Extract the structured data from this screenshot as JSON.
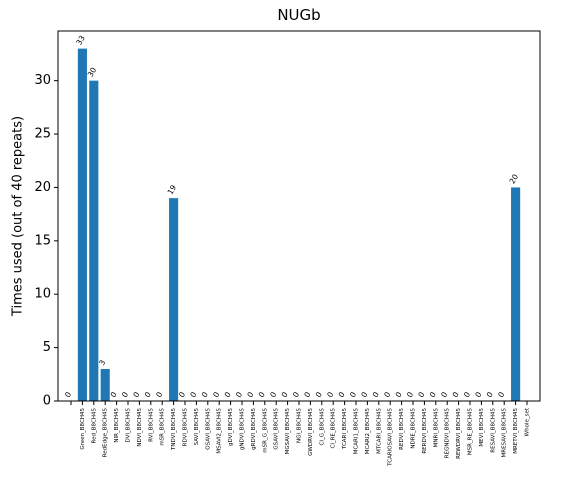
{
  "chart_data": {
    "type": "bar",
    "title": "NUGb",
    "ylabel": "Times used (out of 40 repeats)",
    "categories": [
      null,
      "Green_B8CH45",
      "Red_B8CH45",
      "RedEdge_B8CH45",
      "NIR_B8CH45",
      "DVI_B8CH45",
      "NDVI_B8CH45",
      "RVI_B8CH45",
      "mSR_B8CH45",
      "TNDVI_B8CH45",
      "RDVI_B8CH45",
      "SAVI_B8CH45",
      "OSAVI_B8CH45",
      "MSAVI2_B8CH45",
      "gDVI_B8CH45",
      "gNDVI_B8CH45",
      "gRDVI_B8CH45",
      "mSR_G_B8CH45",
      "GSAVI_B8CH45",
      "MGSAVI_B8CH45",
      "NGI_B8CH45",
      "GWDRVI_B8CH45",
      "CI_G_B8CH45",
      "CI_RE_B8CH45",
      "TCARI_B8CH45",
      "MCARI1_B8CH45",
      "MCARI2_B8CH45",
      "MTCARI_B8CH45",
      "TCARIOSAVI_B8CH45",
      "REDVI_B8CH45",
      "NDRE_B8CH45",
      "RERDVI_B8CH45",
      "MNRI_B8CH45",
      "REGNDVI_B8CH45",
      "REWDRVI_B8CH45",
      "MSR_RE_B8CH45",
      "MEVI_B8CH45",
      "RESAVI_B8CH45",
      "MRESAVI_B8CH45",
      "MRETVI_B8CH45",
      "Whole_set"
    ],
    "values": [
      0,
      33,
      30,
      3,
      0,
      0,
      0,
      0,
      0,
      19,
      0,
      0,
      0,
      0,
      0,
      0,
      0,
      0,
      0,
      0,
      0,
      0,
      0,
      0,
      0,
      0,
      0,
      0,
      0,
      0,
      0,
      0,
      0,
      0,
      0,
      0,
      0,
      0,
      0,
      20,
      null
    ],
    "color": "#1f77b4",
    "ylim": [
      0,
      34.65
    ],
    "yticks": [
      0,
      5,
      10,
      15,
      20,
      25,
      30
    ],
    "grid": false
  }
}
